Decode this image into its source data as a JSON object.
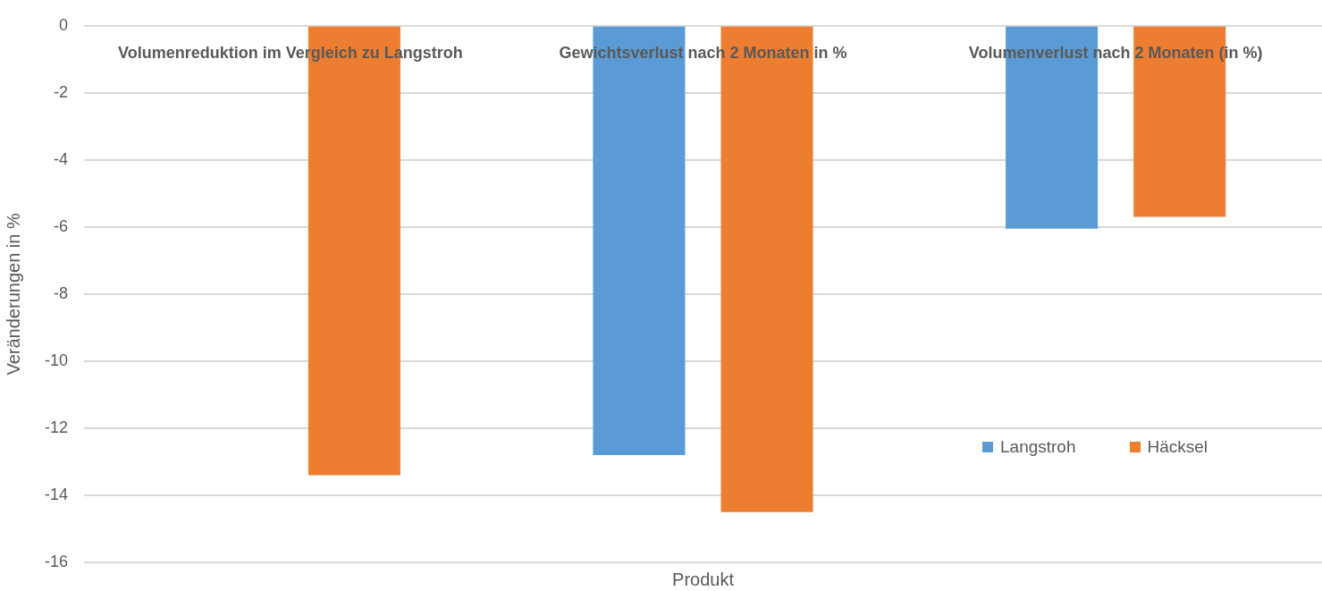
{
  "chart_data": {
    "type": "bar",
    "xlabel": "Produkt",
    "ylabel": "Veränderungen in %",
    "categories": [
      "Volumenreduktion im Vergleich zu Langstroh",
      "Gewichtsverlust nach 2 Monaten in %",
      "Volumenverlust nach 2 Monaten (in %)"
    ],
    "series": [
      {
        "name": "Langstroh",
        "color": "#5b9bd5",
        "values": [
          null,
          -12.8,
          -6.05
        ]
      },
      {
        "name": "Häcksel",
        "color": "#ed7d31",
        "values": [
          -13.4,
          -14.5,
          -5.7
        ]
      }
    ],
    "ylim": [
      -16,
      0
    ],
    "yticks": [
      -16,
      -14,
      -12,
      -10,
      -8,
      -6,
      -4,
      -2,
      0
    ],
    "grid": "y",
    "legend": "bottom right"
  }
}
